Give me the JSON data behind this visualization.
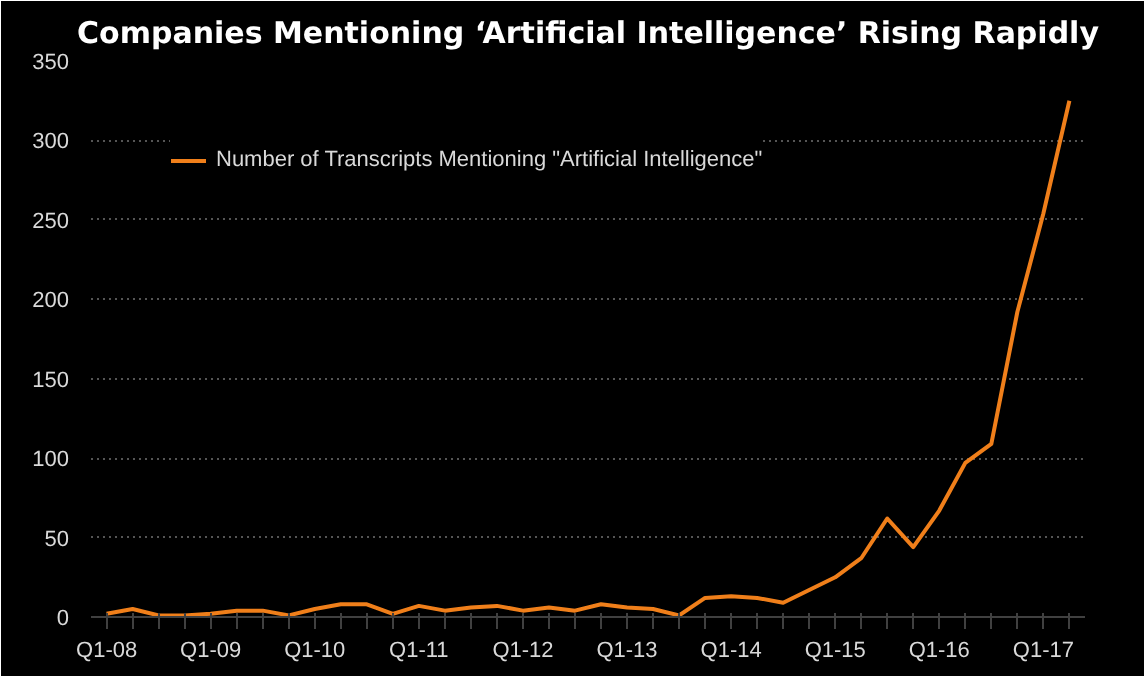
{
  "chart_data": {
    "type": "line",
    "title": "Companies Mentioning ‘Artificial Intelligence’ Rising Rapidly",
    "categories": [
      "Q1-08",
      null,
      null,
      null,
      "Q1-09",
      null,
      null,
      null,
      "Q1-10",
      null,
      null,
      null,
      "Q1-11",
      null,
      null,
      null,
      "Q1-12",
      null,
      null,
      null,
      "Q1-13",
      null,
      null,
      null,
      "Q1-14",
      null,
      null,
      null,
      "Q1-15",
      null,
      null,
      null,
      "Q1-16",
      null,
      null,
      null,
      "Q1-17",
      null
    ],
    "series": [
      {
        "name": "Number of Transcripts Mentioning \"Artificial Intelligence\"",
        "color": "#f07f1a",
        "values": [
          2,
          5,
          1,
          1,
          2,
          4,
          4,
          1,
          5,
          8,
          8,
          2,
          7,
          4,
          6,
          7,
          4,
          6,
          4,
          8,
          6,
          5,
          1,
          12,
          13,
          12,
          9,
          17,
          25,
          37,
          62,
          44,
          67,
          97,
          109,
          192,
          254,
          325
        ]
      }
    ],
    "ylim": [
      0,
      350
    ],
    "yticks": [
      0,
      50,
      100,
      150,
      200,
      250,
      300,
      350
    ],
    "grid": "y",
    "legend": "top left",
    "marker": "none",
    "line_style": "solid"
  }
}
